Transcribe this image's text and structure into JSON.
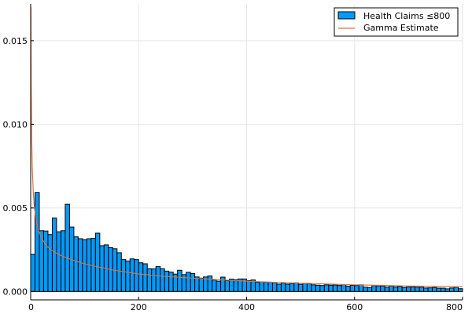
{
  "chart_data": {
    "type": "bar",
    "title": "",
    "xlabel": "",
    "ylabel": "",
    "xlim": [
      0,
      800
    ],
    "ylim": [
      -0.0005,
      0.0172
    ],
    "xticks": [
      0,
      200,
      400,
      600,
      800
    ],
    "xtick_labels": [
      "0",
      "200",
      "400",
      "600",
      "800"
    ],
    "yticks": [
      0,
      0.005,
      0.01,
      0.015
    ],
    "ytick_labels": [
      "0.000",
      "0.005",
      "0.010",
      "0.015"
    ],
    "grid": true,
    "legend_position": "top-right",
    "colors": {
      "bars": "#009AFA",
      "bar_edge": "#000000",
      "line": "#E26F46",
      "grid": "#E6E6E6"
    },
    "histogram": {
      "name": "Health Claims  ≤800",
      "bin_width": 8,
      "bin_start": 0,
      "values": [
        0.00222,
        0.00591,
        0.00364,
        0.00362,
        0.00341,
        0.00439,
        0.00357,
        0.00364,
        0.00522,
        0.00386,
        0.00327,
        0.00316,
        0.00309,
        0.00316,
        0.00318,
        0.00349,
        0.00274,
        0.00279,
        0.00263,
        0.00256,
        0.00232,
        0.00191,
        0.00182,
        0.00195,
        0.00191,
        0.00172,
        0.00166,
        0.00136,
        0.00135,
        0.00149,
        0.00136,
        0.00122,
        0.00116,
        0.00104,
        0.00127,
        0.00101,
        0.00115,
        0.00108,
        0.00087,
        0.0008,
        0.00087,
        0.00093,
        0.00069,
        0.00062,
        0.00086,
        0.00065,
        0.00074,
        0.0007,
        0.00075,
        0.00075,
        0.00065,
        0.00069,
        0.00055,
        0.00058,
        0.00055,
        0.00055,
        0.00053,
        0.00044,
        0.0005,
        0.00044,
        0.00048,
        0.00052,
        0.00043,
        0.00049,
        0.00046,
        0.0004,
        0.00038,
        0.00036,
        0.0004,
        0.00038,
        0.00039,
        0.00036,
        0.00041,
        0.00032,
        0.00037,
        0.00036,
        0.0004,
        0.00026,
        0.00024,
        0.00035,
        0.00034,
        0.00033,
        0.00026,
        0.00033,
        0.00027,
        0.0003,
        0.00024,
        0.00027,
        0.00027,
        0.00026,
        0.00026,
        0.00021,
        0.00022,
        0.00024,
        0.0002,
        0.0002,
        0.00016,
        0.00021,
        0.00026,
        0.00017
      ]
    },
    "series": [
      {
        "name": "Gamma Estimate",
        "x": [
          0.5,
          1,
          2,
          3,
          5,
          7,
          10,
          15,
          20,
          30,
          40,
          50,
          60,
          80,
          100,
          150,
          200,
          250,
          300,
          350,
          400,
          450,
          500,
          550,
          600,
          650,
          700,
          750,
          800
        ],
        "y": [
          0.017,
          0.0125,
          0.009,
          0.0074,
          0.0058,
          0.005,
          0.0043,
          0.0036,
          0.0032,
          0.0027,
          0.00245,
          0.00225,
          0.0021,
          0.00185,
          0.00165,
          0.0013,
          0.00105,
          0.0009,
          0.0008,
          0.0007,
          0.00062,
          0.00055,
          0.0005,
          0.00045,
          0.0004,
          0.00037,
          0.00033,
          0.00031,
          0.00028
        ]
      }
    ]
  }
}
